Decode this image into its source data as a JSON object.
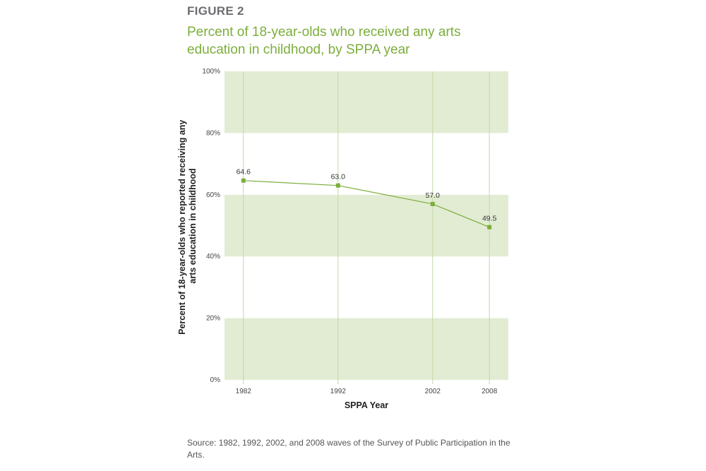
{
  "figure": {
    "label": "FIGURE 2",
    "title": "Percent of 18-year-olds who received any arts education in childhood, by SPPA year",
    "source": "Source: 1982, 1992, 2002, and 2008 waves of the Survey of Public Participation in the Arts."
  },
  "colors": {
    "accent": "#7cae3c",
    "band": "#e2ecd3",
    "gridline": "#c3d9a5"
  },
  "chart_data": {
    "type": "line",
    "title": "Percent of 18-year-olds who received any arts education in childhood, by SPPA year",
    "xlabel": "SPPA Year",
    "ylabel": "Percent of 18-year-olds who reported receiving any arts education in childhood",
    "x": [
      1982,
      1992,
      2002,
      2008
    ],
    "categories": [
      "1982",
      "1992",
      "2002",
      "2008"
    ],
    "values": [
      64.6,
      63.0,
      57.0,
      49.5
    ],
    "data_labels": [
      "64.6",
      "63.0",
      "57.0",
      "49.5"
    ],
    "ylim": [
      0,
      100
    ],
    "yticks": [
      0,
      20,
      40,
      60,
      80,
      100
    ],
    "ytick_labels": [
      "0%",
      "20%",
      "40%",
      "60%",
      "80%",
      "100%"
    ],
    "grid": true,
    "legend": "none"
  }
}
